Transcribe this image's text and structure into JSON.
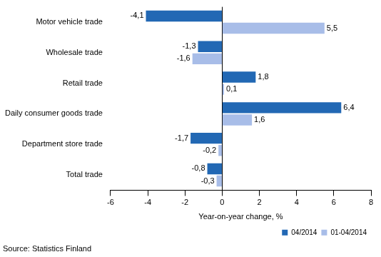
{
  "chart_data": {
    "type": "bar",
    "orientation": "horizontal",
    "categories": [
      "Motor vehicle trade",
      "Wholesale trade",
      "Retail trade",
      "Daily consumer goods trade",
      "Department store trade",
      "Total trade"
    ],
    "series": [
      {
        "name": "04/2014",
        "color": "#2268b4",
        "values": [
          -4.1,
          -1.3,
          1.8,
          6.4,
          -1.7,
          -0.8
        ],
        "value_labels": [
          "-4,1",
          "-1,3",
          "1,8",
          "6,4",
          "-1,7",
          "-0,8"
        ]
      },
      {
        "name": "01-04/2014",
        "color": "#a8bde8",
        "values": [
          5.5,
          -1.6,
          0.1,
          1.6,
          -0.2,
          -0.3
        ],
        "value_labels": [
          "5,5",
          "-1,6",
          "0,1",
          "1,6",
          "-0,2",
          "-0,3"
        ]
      }
    ],
    "x_label": "Year-on-year change, %",
    "source": "Source: Statistics Finland",
    "xlim": [
      -6,
      8
    ],
    "xticks": [
      -6,
      -4,
      -2,
      0,
      2,
      4,
      6,
      8
    ],
    "grid": false,
    "legend": "lower right",
    "data_labels": true
  }
}
